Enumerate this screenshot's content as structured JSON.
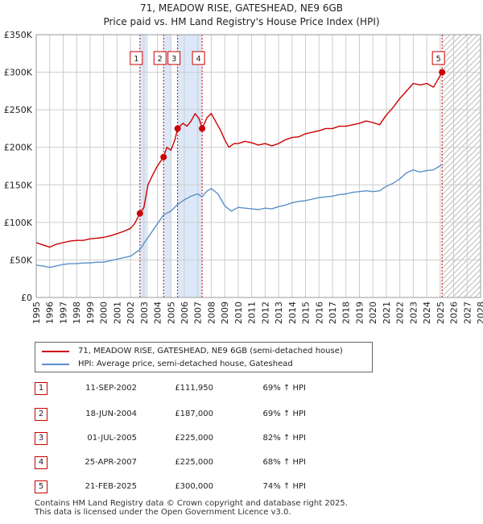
{
  "title": "71, MEADOW RISE, GATESHEAD, NE9 6GB",
  "subtitle": "Price paid vs. HM Land Registry's House Price Index (HPI)",
  "colors": {
    "property": "#cc0000",
    "hpi": "#5b8fc9",
    "shade": "#dce8f8",
    "grid": "#cccccc"
  },
  "legend": [
    {
      "label": "71, MEADOW RISE, GATESHEAD, NE9 6GB (semi-detached house)",
      "color": "#cc0000"
    },
    {
      "label": "HPI: Average price, semi-detached house, Gateshead",
      "color": "#5b8fc9"
    }
  ],
  "sales": [
    {
      "num": "1",
      "date": "11-SEP-2002",
      "price": "£111,950",
      "hpi": "69% ↑ HPI"
    },
    {
      "num": "2",
      "date": "18-JUN-2004",
      "price": "£187,000",
      "hpi": "69% ↑ HPI"
    },
    {
      "num": "3",
      "date": "01-JUL-2005",
      "price": "£225,000",
      "hpi": "82% ↑ HPI"
    },
    {
      "num": "4",
      "date": "25-APR-2007",
      "price": "£225,000",
      "hpi": "68% ↑ HPI"
    },
    {
      "num": "5",
      "date": "21-FEB-2025",
      "price": "£300,000",
      "hpi": "74% ↑ HPI"
    }
  ],
  "footer": [
    "Contains HM Land Registry data © Crown copyright and database right 2025.",
    "This data is licensed under the Open Government Licence v3.0."
  ],
  "chart_data": {
    "type": "line",
    "xlim": [
      1995,
      2028
    ],
    "ylim": [
      0,
      350000
    ],
    "x_ticks": [
      "1995",
      "1996",
      "1997",
      "1998",
      "1999",
      "2000",
      "2001",
      "2002",
      "2003",
      "2004",
      "2005",
      "2006",
      "2007",
      "2008",
      "2009",
      "2010",
      "2011",
      "2012",
      "2013",
      "2014",
      "2015",
      "2016",
      "2017",
      "2018",
      "2019",
      "2020",
      "2021",
      "2022",
      "2023",
      "2024",
      "2025",
      "2026",
      "2027",
      "2028"
    ],
    "y_ticks": [
      {
        "value": 0,
        "label": "£0"
      },
      {
        "value": 50000,
        "label": "£50K"
      },
      {
        "value": 100000,
        "label": "£100K"
      },
      {
        "value": 150000,
        "label": "£150K"
      },
      {
        "value": 200000,
        "label": "£200K"
      },
      {
        "value": 250000,
        "label": "£250K"
      },
      {
        "value": 300000,
        "label": "£300K"
      },
      {
        "value": 350000,
        "label": "£350K"
      }
    ],
    "grid": true,
    "shaded_bands": [
      [
        2002.7,
        2003.3
      ],
      [
        2004.46,
        2005.0
      ],
      [
        2005.5,
        2007.32
      ]
    ],
    "hatch_from": 2025.14,
    "series": [
      {
        "name": "71, MEADOW RISE, GATESHEAD, NE9 6GB (semi-detached house)",
        "points": [
          [
            1995.0,
            73000
          ],
          [
            1995.5,
            70000
          ],
          [
            1996.0,
            67000
          ],
          [
            1996.5,
            71000
          ],
          [
            1997.0,
            73000
          ],
          [
            1997.5,
            75000
          ],
          [
            1998.0,
            76000
          ],
          [
            1998.5,
            76000
          ],
          [
            1999.0,
            78000
          ],
          [
            1999.5,
            79000
          ],
          [
            2000.0,
            80000
          ],
          [
            2000.5,
            82000
          ],
          [
            2001.0,
            85000
          ],
          [
            2001.5,
            88000
          ],
          [
            2002.0,
            92000
          ],
          [
            2002.3,
            98000
          ],
          [
            2002.7,
            111950
          ],
          [
            2003.0,
            120000
          ],
          [
            2003.3,
            150000
          ],
          [
            2003.7,
            165000
          ],
          [
            2004.0,
            175000
          ],
          [
            2004.46,
            187000
          ],
          [
            2004.7,
            200000
          ],
          [
            2005.0,
            196000
          ],
          [
            2005.3,
            210000
          ],
          [
            2005.5,
            225000
          ],
          [
            2005.9,
            232000
          ],
          [
            2006.2,
            228000
          ],
          [
            2006.5,
            235000
          ],
          [
            2006.8,
            245000
          ],
          [
            2007.1,
            238000
          ],
          [
            2007.32,
            225000
          ],
          [
            2007.7,
            240000
          ],
          [
            2008.0,
            245000
          ],
          [
            2008.3,
            235000
          ],
          [
            2008.7,
            222000
          ],
          [
            2009.0,
            210000
          ],
          [
            2009.3,
            200000
          ],
          [
            2009.7,
            205000
          ],
          [
            2010.0,
            205000
          ],
          [
            2010.5,
            208000
          ],
          [
            2011.0,
            206000
          ],
          [
            2011.5,
            203000
          ],
          [
            2012.0,
            205000
          ],
          [
            2012.5,
            202000
          ],
          [
            2013.0,
            205000
          ],
          [
            2013.5,
            210000
          ],
          [
            2014.0,
            213000
          ],
          [
            2014.5,
            214000
          ],
          [
            2015.0,
            218000
          ],
          [
            2015.5,
            220000
          ],
          [
            2016.0,
            222000
          ],
          [
            2016.5,
            225000
          ],
          [
            2017.0,
            225000
          ],
          [
            2017.5,
            228000
          ],
          [
            2018.0,
            228000
          ],
          [
            2018.5,
            230000
          ],
          [
            2019.0,
            232000
          ],
          [
            2019.5,
            235000
          ],
          [
            2020.0,
            233000
          ],
          [
            2020.5,
            230000
          ],
          [
            2021.0,
            243000
          ],
          [
            2021.5,
            253000
          ],
          [
            2022.0,
            265000
          ],
          [
            2022.5,
            275000
          ],
          [
            2023.0,
            285000
          ],
          [
            2023.5,
            283000
          ],
          [
            2024.0,
            285000
          ],
          [
            2024.5,
            280000
          ],
          [
            2025.14,
            300000
          ]
        ]
      },
      {
        "name": "HPI: Average price, semi-detached house, Gateshead",
        "points": [
          [
            1995.0,
            43000
          ],
          [
            1995.5,
            42000
          ],
          [
            1996.0,
            40000
          ],
          [
            1996.5,
            42000
          ],
          [
            1997.0,
            44000
          ],
          [
            1997.5,
            45000
          ],
          [
            1998.0,
            45000
          ],
          [
            1998.5,
            46000
          ],
          [
            1999.0,
            46000
          ],
          [
            1999.5,
            47000
          ],
          [
            2000.0,
            47000
          ],
          [
            2000.5,
            49000
          ],
          [
            2001.0,
            51000
          ],
          [
            2001.5,
            53000
          ],
          [
            2002.0,
            55000
          ],
          [
            2002.7,
            64000
          ],
          [
            2003.0,
            72000
          ],
          [
            2003.5,
            85000
          ],
          [
            2004.0,
            98000
          ],
          [
            2004.46,
            110000
          ],
          [
            2005.0,
            115000
          ],
          [
            2005.5,
            124000
          ],
          [
            2006.0,
            130000
          ],
          [
            2006.5,
            135000
          ],
          [
            2007.0,
            138000
          ],
          [
            2007.32,
            134000
          ],
          [
            2007.7,
            142000
          ],
          [
            2008.0,
            145000
          ],
          [
            2008.5,
            138000
          ],
          [
            2009.0,
            122000
          ],
          [
            2009.5,
            115000
          ],
          [
            2010.0,
            120000
          ],
          [
            2010.5,
            119000
          ],
          [
            2011.0,
            118000
          ],
          [
            2011.5,
            117000
          ],
          [
            2012.0,
            119000
          ],
          [
            2012.5,
            118000
          ],
          [
            2013.0,
            121000
          ],
          [
            2013.5,
            123000
          ],
          [
            2014.0,
            126000
          ],
          [
            2014.5,
            128000
          ],
          [
            2015.0,
            129000
          ],
          [
            2015.5,
            131000
          ],
          [
            2016.0,
            133000
          ],
          [
            2016.5,
            134000
          ],
          [
            2017.0,
            135000
          ],
          [
            2017.5,
            137000
          ],
          [
            2018.0,
            138000
          ],
          [
            2018.5,
            140000
          ],
          [
            2019.0,
            141000
          ],
          [
            2019.5,
            142000
          ],
          [
            2020.0,
            141000
          ],
          [
            2020.5,
            142000
          ],
          [
            2021.0,
            148000
          ],
          [
            2021.5,
            152000
          ],
          [
            2022.0,
            158000
          ],
          [
            2022.5,
            166000
          ],
          [
            2023.0,
            170000
          ],
          [
            2023.5,
            167000
          ],
          [
            2024.0,
            169000
          ],
          [
            2024.5,
            170000
          ],
          [
            2025.14,
            177000
          ]
        ]
      }
    ],
    "markers": [
      {
        "label": "1",
        "x": 2002.7,
        "y": 111950
      },
      {
        "label": "2",
        "x": 2004.46,
        "y": 187000
      },
      {
        "label": "3",
        "x": 2005.5,
        "y": 225000
      },
      {
        "label": "4",
        "x": 2007.32,
        "y": 225000
      },
      {
        "label": "5",
        "x": 2025.14,
        "y": 300000
      }
    ]
  }
}
